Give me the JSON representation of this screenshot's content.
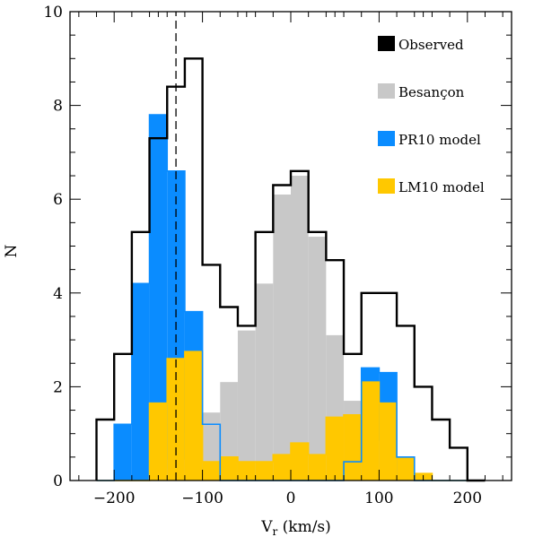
{
  "chart_data": {
    "type": "bar",
    "xlabel": "V",
    "xlabel_sub": "r",
    "xlabel_unit": " (km/s)",
    "ylabel": "N",
    "xlim": [
      -250,
      250
    ],
    "ylim": [
      0,
      10
    ],
    "xticks": [
      -200,
      -100,
      0,
      100,
      200
    ],
    "yticks": [
      0,
      2,
      4,
      6,
      8,
      10
    ],
    "bin_edges": [
      -220,
      -200,
      -180,
      -160,
      -140,
      -120,
      -100,
      -80,
      -60,
      -40,
      -20,
      0,
      20,
      40,
      60,
      80,
      100,
      120,
      140,
      160,
      180,
      200,
      220
    ],
    "reference_line": {
      "x": -130,
      "style": "dashed"
    },
    "legend_position": "top-right",
    "series": [
      {
        "name": "Observed",
        "style": "step-outline",
        "color": "#000000",
        "values": [
          1.3,
          2.7,
          5.3,
          7.3,
          8.4,
          9.0,
          4.6,
          3.7,
          3.3,
          5.3,
          6.3,
          6.6,
          5.3,
          4.7,
          2.7,
          4.0,
          4.0,
          3.3,
          2.0,
          1.3,
          0.7,
          0.0
        ]
      },
      {
        "name": "Besançon",
        "style": "filled",
        "color": "#c8c8c8",
        "values": [
          0.0,
          0.0,
          0.0,
          0.25,
          0.45,
          1.0,
          1.45,
          2.1,
          3.2,
          4.2,
          6.1,
          6.5,
          5.2,
          3.1,
          1.7,
          0.85,
          0.5,
          0.0,
          0.0,
          0.0,
          0.0,
          0.0
        ]
      },
      {
        "name": "PR10 model",
        "style": "filled",
        "color": "#0a8cff",
        "values": [
          0.0,
          1.2,
          4.2,
          7.8,
          6.6,
          3.6,
          1.2,
          0.0,
          0.0,
          0.0,
          0.0,
          0.0,
          0.0,
          0.0,
          0.4,
          2.4,
          2.3,
          0.5,
          0.0,
          0.0,
          0.0,
          0.0
        ]
      },
      {
        "name": "LM10 model",
        "style": "filled",
        "color": "#ffc800",
        "values": [
          0.0,
          0.0,
          0.0,
          1.65,
          2.6,
          2.75,
          0.4,
          0.5,
          0.4,
          0.4,
          0.55,
          0.8,
          0.55,
          1.35,
          1.4,
          2.1,
          1.65,
          0.5,
          0.15,
          0.0,
          0.0,
          0.0
        ]
      }
    ]
  }
}
